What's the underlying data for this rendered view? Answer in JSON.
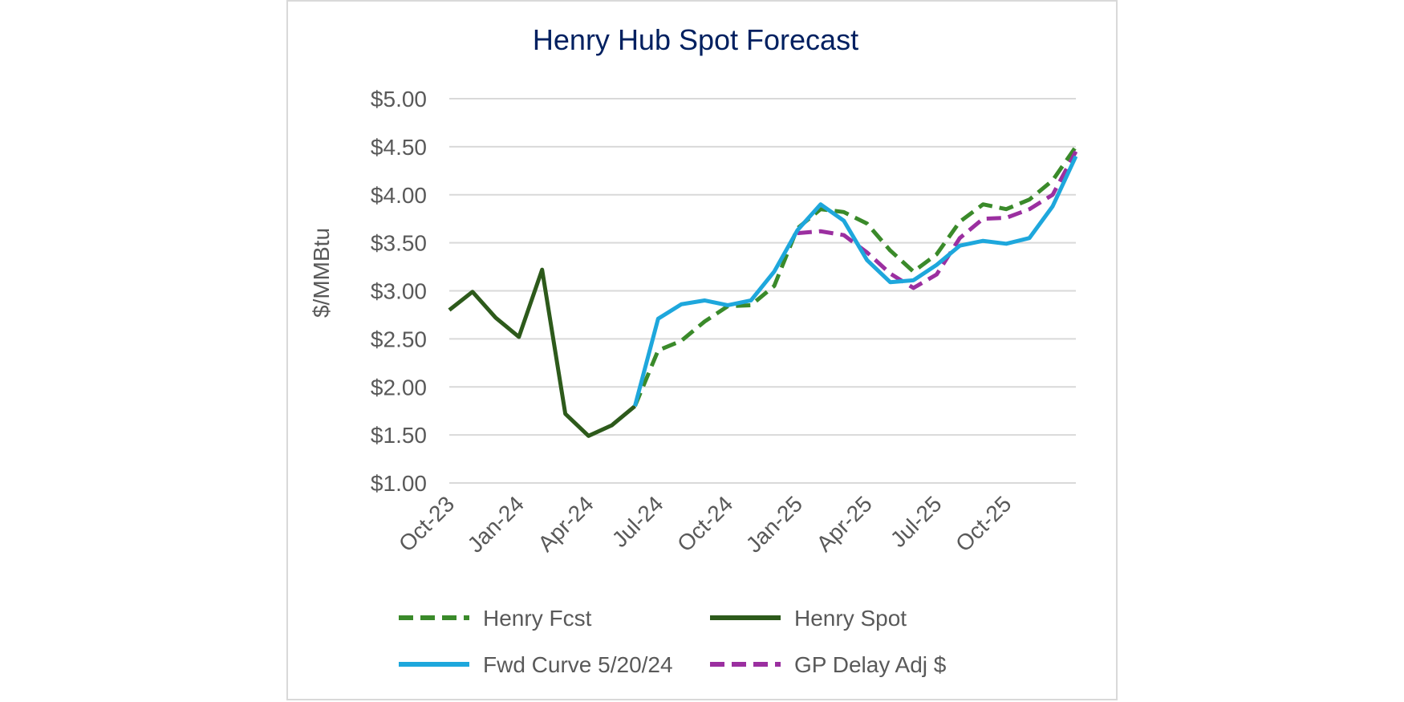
{
  "chart_data": {
    "type": "line",
    "title": "Henry Hub Spot Forecast",
    "ylabel": "$/MMBtu",
    "xlabel": "",
    "ylim": [
      1.0,
      5.0
    ],
    "yticks": [
      1.0,
      1.5,
      2.0,
      2.5,
      3.0,
      3.5,
      4.0,
      4.5,
      5.0
    ],
    "ytick_labels": [
      "$1.00",
      "$1.50",
      "$2.00",
      "$2.50",
      "$3.00",
      "$3.50",
      "$4.00",
      "$4.50",
      "$5.00"
    ],
    "x": [
      "Oct-23",
      "Nov-23",
      "Dec-23",
      "Jan-24",
      "Feb-24",
      "Mar-24",
      "Apr-24",
      "May-24",
      "Jun-24",
      "Jul-24",
      "Aug-24",
      "Sep-24",
      "Oct-24",
      "Nov-24",
      "Dec-24",
      "Jan-25",
      "Feb-25",
      "Mar-25",
      "Apr-25",
      "May-25",
      "Jun-25",
      "Jul-25",
      "Aug-25",
      "Sep-25",
      "Oct-25",
      "Nov-25",
      "Dec-25",
      "Jan-26"
    ],
    "xtick_labels": [
      "Oct-23",
      "Jan-24",
      "Apr-24",
      "Jul-24",
      "Oct-24",
      "Jan-25",
      "Apr-25",
      "Jul-25",
      "Oct-25"
    ],
    "grid": true,
    "legend_position": "bottom",
    "series": [
      {
        "name": "Henry Fcst",
        "color": "#3a8a2a",
        "style": "dashed",
        "values": [
          null,
          null,
          null,
          null,
          null,
          null,
          null,
          null,
          1.8,
          2.38,
          2.48,
          2.68,
          2.84,
          2.85,
          3.05,
          3.65,
          3.85,
          3.82,
          3.7,
          3.42,
          3.2,
          3.38,
          3.72,
          3.9,
          3.85,
          3.95,
          4.15,
          4.5
        ]
      },
      {
        "name": "Henry Spot",
        "color": "#2d5a1b",
        "style": "solid",
        "values": [
          2.8,
          2.99,
          2.72,
          2.52,
          3.22,
          1.72,
          1.49,
          1.6,
          1.8,
          null,
          null,
          null,
          null,
          null,
          null,
          null,
          null,
          null,
          null,
          null,
          null,
          null,
          null,
          null,
          null,
          null,
          null,
          null
        ]
      },
      {
        "name": "Fwd Curve 5/20/24",
        "color": "#1ea7dc",
        "style": "solid",
        "values": [
          null,
          null,
          null,
          null,
          null,
          null,
          null,
          null,
          1.8,
          2.71,
          2.86,
          2.9,
          2.85,
          2.9,
          3.2,
          3.63,
          3.9,
          3.73,
          3.32,
          3.09,
          3.11,
          3.27,
          3.47,
          3.52,
          3.49,
          3.55,
          3.88,
          4.4
        ]
      },
      {
        "name": "GP Delay Adj $",
        "color": "#9b2fa0",
        "style": "dashed",
        "values": [
          null,
          null,
          null,
          null,
          null,
          null,
          null,
          null,
          null,
          null,
          null,
          null,
          null,
          null,
          null,
          3.6,
          3.62,
          3.58,
          3.4,
          3.18,
          3.03,
          3.17,
          3.55,
          3.75,
          3.76,
          3.85,
          4.0,
          4.45
        ]
      }
    ]
  }
}
